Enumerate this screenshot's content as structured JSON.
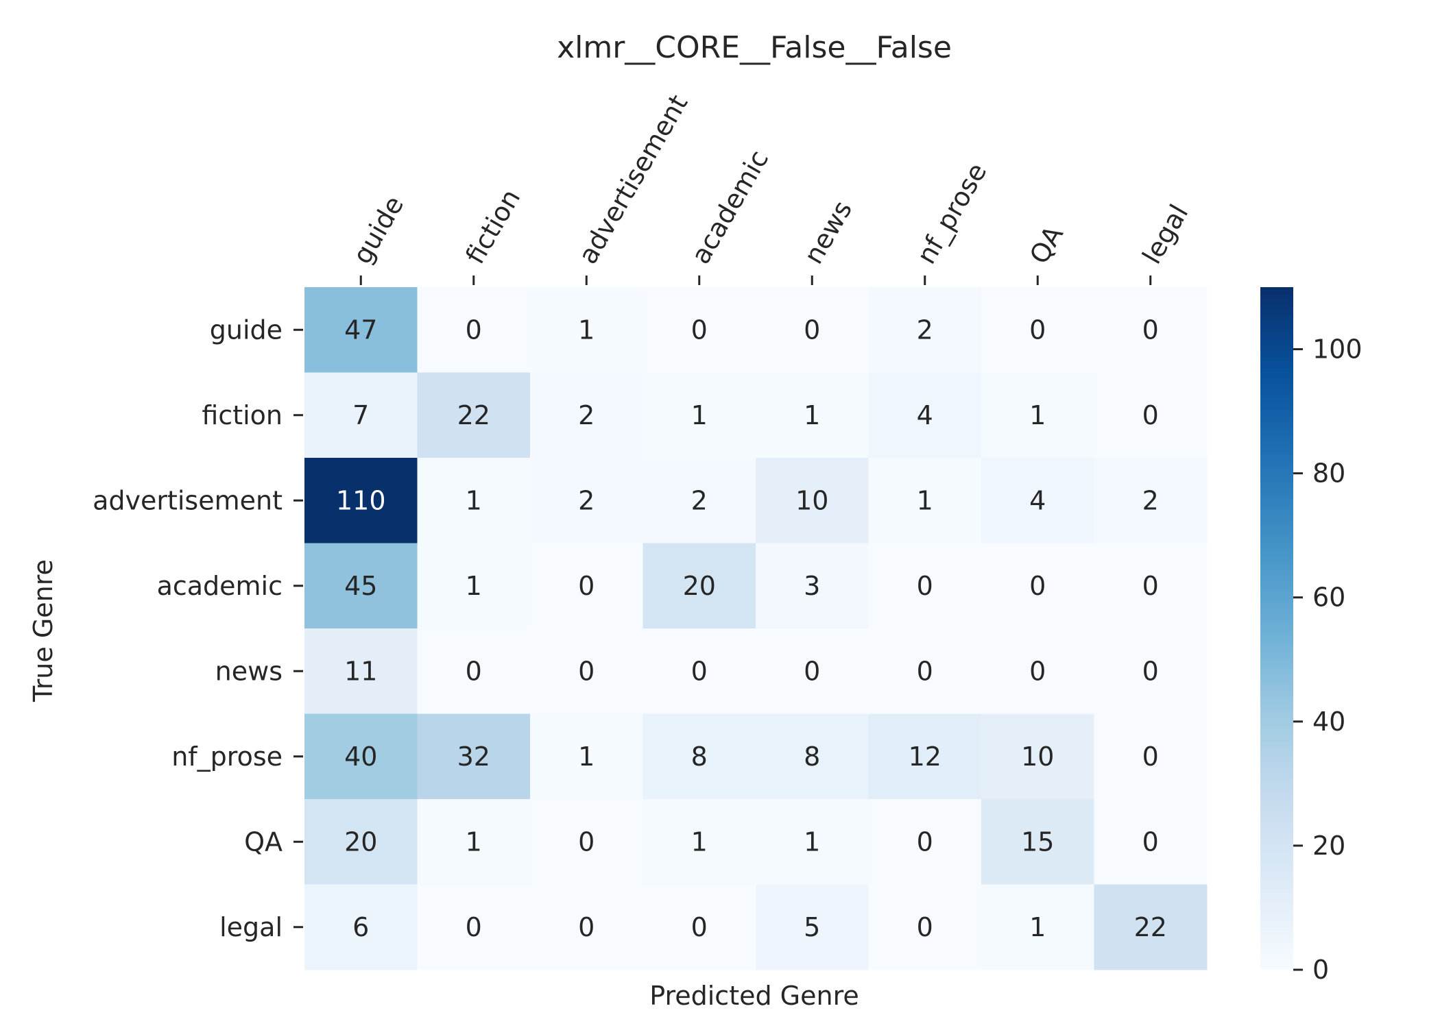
{
  "chart_data": {
    "type": "heatmap",
    "title": "xlmr__CORE__False__False",
    "xlabel": "Predicted Genre",
    "ylabel": "True Genre",
    "x_categories": [
      "guide",
      "fiction",
      "advertisement",
      "academic",
      "news",
      "nf_prose",
      "QA",
      "legal"
    ],
    "y_categories": [
      "guide",
      "fiction",
      "advertisement",
      "academic",
      "news",
      "nf_prose",
      "QA",
      "legal"
    ],
    "values": [
      [
        47,
        0,
        1,
        0,
        0,
        2,
        0,
        0
      ],
      [
        7,
        22,
        2,
        1,
        1,
        4,
        1,
        0
      ],
      [
        110,
        1,
        2,
        2,
        10,
        1,
        4,
        2
      ],
      [
        45,
        1,
        0,
        20,
        3,
        0,
        0,
        0
      ],
      [
        11,
        0,
        0,
        0,
        0,
        0,
        0,
        0
      ],
      [
        40,
        32,
        1,
        8,
        8,
        12,
        10,
        0
      ],
      [
        20,
        1,
        0,
        1,
        1,
        0,
        15,
        0
      ],
      [
        6,
        0,
        0,
        0,
        5,
        0,
        1,
        22
      ]
    ],
    "colorscale": "Blues",
    "colorbar": {
      "min": 0,
      "max": 110,
      "ticks": [
        0,
        20,
        40,
        60,
        80,
        100
      ]
    },
    "xtick_position": "top",
    "xtick_rotation_deg": 60
  }
}
